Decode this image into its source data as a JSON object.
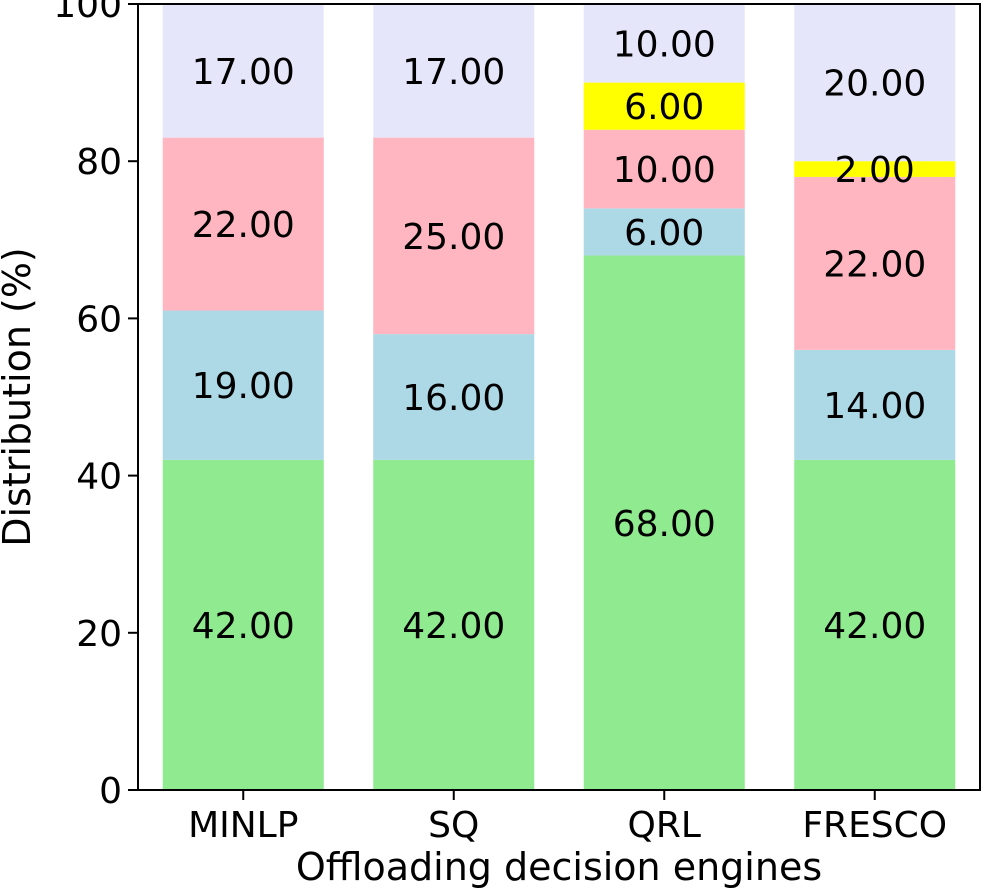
{
  "chart_data": {
    "type": "bar",
    "stacked": true,
    "categories": [
      "MINLP",
      "SQ",
      "QRL",
      "FRESCO"
    ],
    "series": [
      {
        "color": "#90ea90",
        "values": [
          42,
          42,
          68,
          42
        ]
      },
      {
        "color": "#add8e6",
        "values": [
          19,
          16,
          6,
          14
        ]
      },
      {
        "color": "#ffb6c1",
        "values": [
          22,
          25,
          10,
          22
        ]
      },
      {
        "color": "#ffff00",
        "values": [
          0,
          0,
          6,
          2
        ]
      },
      {
        "color": "#e6e6fa",
        "values": [
          17,
          17,
          10,
          20
        ]
      }
    ],
    "data_labels": [
      [
        "42.00",
        "42.00",
        "68.00",
        "42.00"
      ],
      [
        "19.00",
        "16.00",
        "6.00",
        "14.00"
      ],
      [
        "22.00",
        "25.00",
        "10.00",
        "22.00"
      ],
      [
        "",
        "",
        "6.00",
        "2.00"
      ],
      [
        "17.00",
        "17.00",
        "10.00",
        "20.00"
      ]
    ],
    "xlabel": "Offloading decision engines",
    "ylabel": "Distribution (%)",
    "ylim": [
      0,
      100
    ],
    "yticks": [
      "0",
      "20",
      "40",
      "60",
      "80",
      "100"
    ],
    "grid": false,
    "legend": "none"
  }
}
